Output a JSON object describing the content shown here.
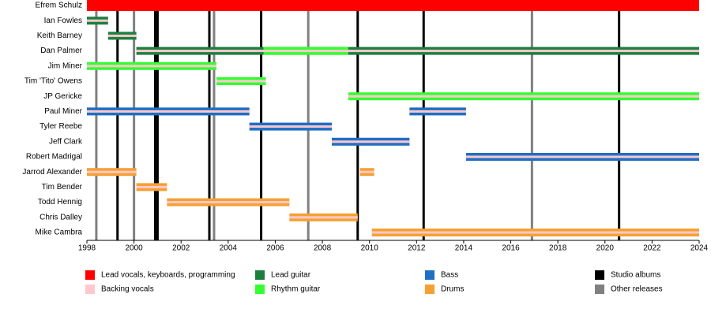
{
  "chart_data": {
    "type": "timeline",
    "categories": [
      "Efrem Schulz",
      "Ian Fowles",
      "Keith Barney",
      "Dan Palmer",
      "Jim Miner",
      "Tim 'Tito' Owens",
      "JP Gericke",
      "Paul Miner",
      "Tyler Reebe",
      "Jeff Clark",
      "Robert Madrigal",
      "Jarrod Alexander",
      "Tim Bender",
      "Todd Hennig",
      "Chris Dalley",
      "Mike Cambra"
    ],
    "series": [
      {
        "name": "Lead vocals, keyboards, programming",
        "color": "#ff0000",
        "bars": [
          {
            "member": "Efrem Schulz",
            "start": 1998,
            "end": 2024
          }
        ]
      },
      {
        "name": "Backing vocals",
        "color": "#ffc8cc",
        "bars": [
          {
            "member": "Ian Fowles",
            "start": 1998,
            "end": 1998.9
          },
          {
            "member": "Keith Barney",
            "start": 1998.9,
            "end": 2000.1
          },
          {
            "member": "Dan Palmer",
            "start": 2000.1,
            "end": 2024
          },
          {
            "member": "Jim Miner",
            "start": 1998,
            "end": 2003.5
          },
          {
            "member": "Tim 'Tito' Owens",
            "start": 2003.5,
            "end": 2005.6
          },
          {
            "member": "JP Gericke",
            "start": 2009.1,
            "end": 2024
          },
          {
            "member": "Paul Miner",
            "start": 1998,
            "end": 2004.9
          },
          {
            "member": "Paul Miner",
            "start": 2011.7,
            "end": 2014.1
          },
          {
            "member": "Tyler Reebe",
            "start": 2004.9,
            "end": 2008.4
          },
          {
            "member": "Jeff Clark",
            "start": 2008.4,
            "end": 2011.7
          },
          {
            "member": "Robert Madrigal",
            "start": 2014.1,
            "end": 2024
          },
          {
            "member": "Jarrod Alexander",
            "start": 1998,
            "end": 2000.1
          },
          {
            "member": "Jarrod Alexander",
            "start": 2009.6,
            "end": 2010.2
          },
          {
            "member": "Tim Bender",
            "start": 2000.1,
            "end": 2001.4
          },
          {
            "member": "Todd Hennig",
            "start": 2001.4,
            "end": 2006.6
          },
          {
            "member": "Chris Dalley",
            "start": 2006.6,
            "end": 2009.5
          },
          {
            "member": "Mike Cambra",
            "start": 2010.1,
            "end": 2024
          }
        ]
      },
      {
        "name": "Lead guitar",
        "color": "#1b7f3e",
        "bars": [
          {
            "member": "Ian Fowles",
            "start": 1998,
            "end": 1998.9
          },
          {
            "member": "Keith Barney",
            "start": 1998.9,
            "end": 2000.1
          },
          {
            "member": "Dan Palmer",
            "start": 2000.1,
            "end": 2024
          }
        ]
      },
      {
        "name": "Rhythm guitar",
        "color": "#33ff33",
        "bars": [
          {
            "member": "Dan Palmer",
            "start": 2005.5,
            "end": 2009.1
          },
          {
            "member": "Jim Miner",
            "start": 1998,
            "end": 2003.5
          },
          {
            "member": "Tim 'Tito' Owens",
            "start": 2003.5,
            "end": 2005.6
          },
          {
            "member": "JP Gericke",
            "start": 2009.1,
            "end": 2024
          }
        ]
      },
      {
        "name": "Bass",
        "color": "#1f6fc5",
        "bars": [
          {
            "member": "Paul Miner",
            "start": 1998,
            "end": 2004.9
          },
          {
            "member": "Paul Miner",
            "start": 2011.7,
            "end": 2014.1
          },
          {
            "member": "Tyler Reebe",
            "start": 2004.9,
            "end": 2008.4
          },
          {
            "member": "Jeff Clark",
            "start": 2008.4,
            "end": 2011.7
          },
          {
            "member": "Robert Madrigal",
            "start": 2014.1,
            "end": 2024
          }
        ]
      },
      {
        "name": "Drums",
        "color": "#f5a030",
        "bars": [
          {
            "member": "Jarrod Alexander",
            "start": 1998,
            "end": 2000.1
          },
          {
            "member": "Jarrod Alexander",
            "start": 2009.6,
            "end": 2010.2
          },
          {
            "member": "Tim Bender",
            "start": 2000.1,
            "end": 2001.4
          },
          {
            "member": "Todd Hennig",
            "start": 2001.4,
            "end": 2006.6
          },
          {
            "member": "Chris Dalley",
            "start": 2006.6,
            "end": 2009.5
          },
          {
            "member": "Mike Cambra",
            "start": 2010.1,
            "end": 2024
          }
        ]
      }
    ],
    "lines": [
      {
        "name": "Studio albums",
        "color": "#000000",
        "values": [
          1999.3,
          2000.9,
          2001.0,
          2003.2,
          2005.4,
          2009.5,
          2012.3,
          2020.6
        ]
      },
      {
        "name": "Other releases",
        "color": "#808080",
        "values": [
          1998.4,
          2000.0,
          2003.4,
          2007.4,
          2016.9
        ]
      }
    ],
    "xlim": [
      1998,
      2024
    ],
    "xticks": [
      1998,
      2000,
      2002,
      2004,
      2006,
      2008,
      2010,
      2012,
      2014,
      2016,
      2018,
      2020,
      2022,
      2024
    ]
  }
}
